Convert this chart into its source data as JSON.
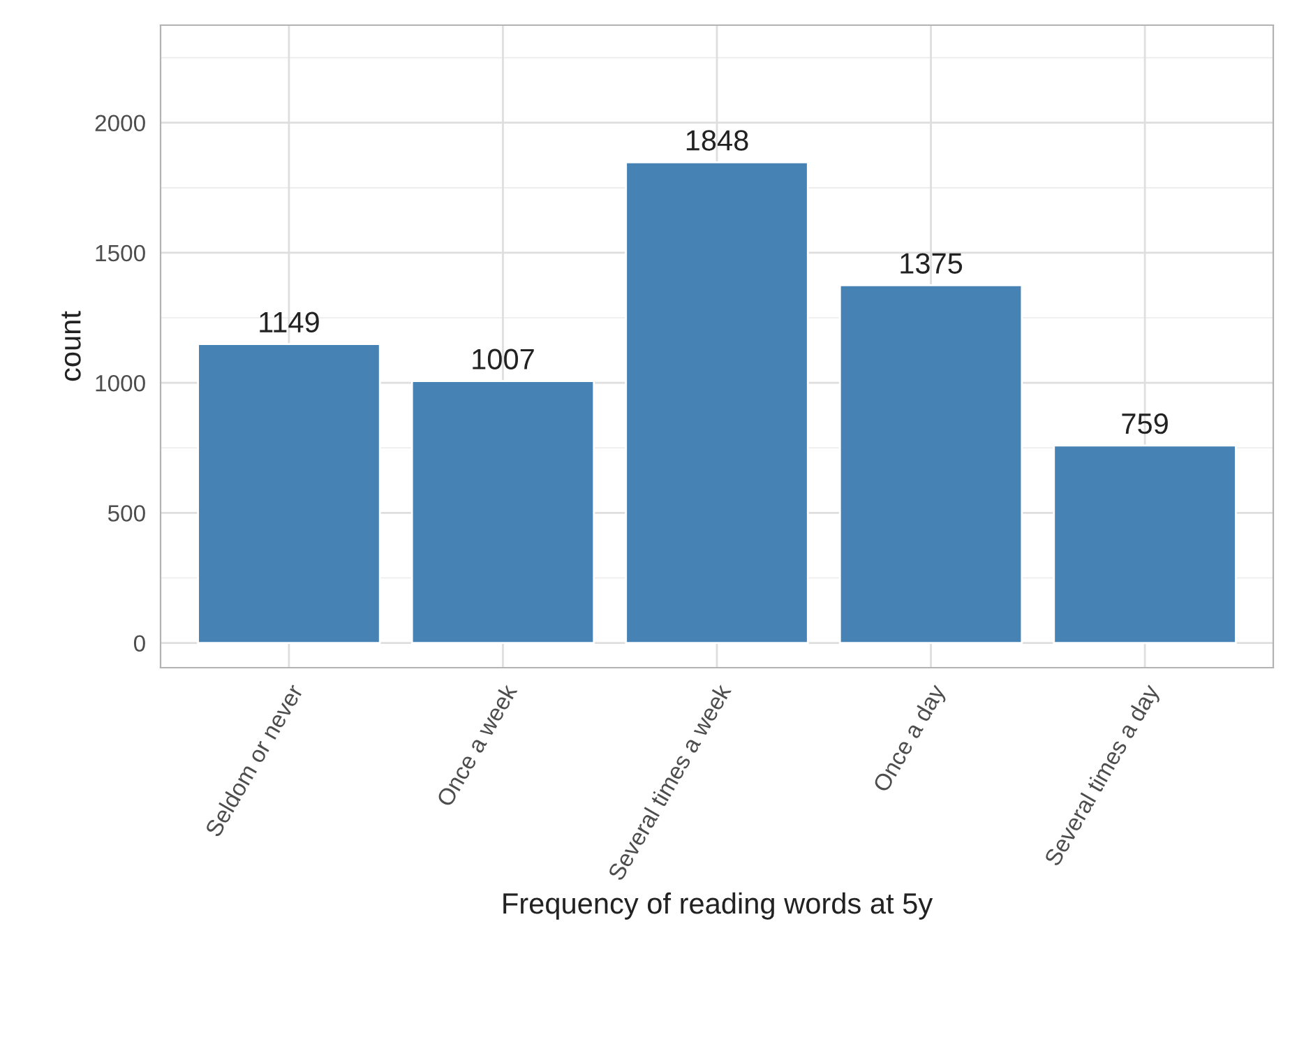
{
  "chart_data": {
    "type": "bar",
    "xlabel": "Frequency of reading words at 5y",
    "ylabel": "count",
    "categories": [
      "Seldom or never",
      "Once a week",
      "Several times a week",
      "Once a day",
      "Several times a day"
    ],
    "values": [
      1149,
      1007,
      1848,
      1375,
      759
    ],
    "color": "#4682b4",
    "ylim": [
      -95,
      2375
    ],
    "yticks": [
      0,
      500,
      1000,
      1500,
      2000
    ],
    "grid": true,
    "data_labels": true
  }
}
